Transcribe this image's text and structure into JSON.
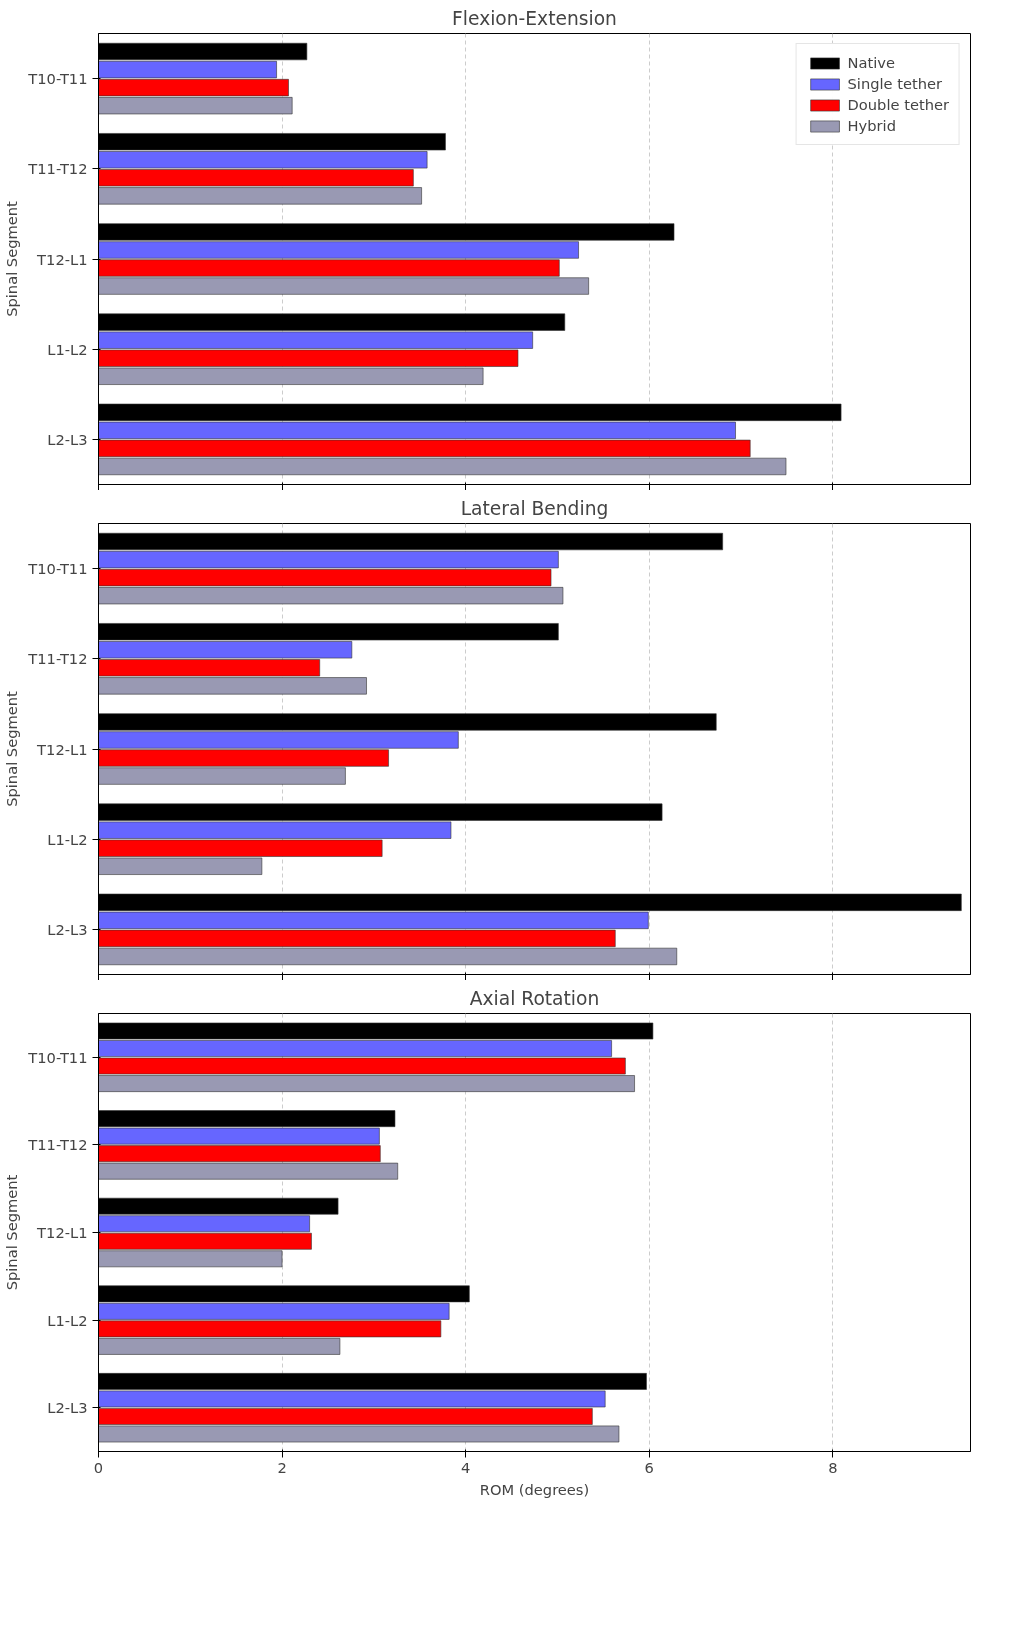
{
  "chart_data": [
    {
      "type": "bar",
      "orientation": "horizontal",
      "title": "Flexion-Extension",
      "ylabel": "Spinal Segment",
      "categories": [
        "T10-T11",
        "T11-T12",
        "T12-L1",
        "L1-L2",
        "L2-L3"
      ],
      "xlim": [
        0,
        9.5
      ],
      "xticks": [
        0,
        2,
        4,
        6,
        8
      ],
      "grid": "x",
      "legend": "top right",
      "tick_labels": "y",
      "series": [
        {
          "name": "Native",
          "color": "#000000",
          "values": [
            2.27,
            3.78,
            6.27,
            5.08,
            8.09
          ]
        },
        {
          "name": "Single tether",
          "color": "#6666ff",
          "values": [
            1.94,
            3.58,
            5.23,
            4.73,
            6.94
          ]
        },
        {
          "name": "Double tether",
          "color": "#ff0000",
          "values": [
            2.07,
            3.43,
            5.02,
            4.57,
            7.1
          ]
        },
        {
          "name": "Hybrid",
          "color": "#9999b3",
          "values": [
            2.11,
            3.52,
            5.34,
            4.19,
            7.49
          ]
        }
      ]
    },
    {
      "type": "bar",
      "orientation": "horizontal",
      "title": "Lateral Bending",
      "ylabel": "Spinal Segment",
      "categories": [
        "T10-T11",
        "T11-T12",
        "T12-L1",
        "L1-L2",
        "L2-L3"
      ],
      "xlim": [
        0,
        9.5
      ],
      "xticks": [
        0,
        2,
        4,
        6,
        8
      ],
      "grid": "x",
      "tick_labels": "y",
      "series": [
        {
          "color": "#000000",
          "values": [
            6.8,
            5.01,
            6.73,
            6.14,
            9.4
          ]
        },
        {
          "color": "#6666ff",
          "values": [
            5.01,
            2.76,
            3.92,
            3.84,
            5.99
          ]
        },
        {
          "color": "#ff0000",
          "values": [
            4.93,
            2.41,
            3.16,
            3.09,
            5.63
          ]
        },
        {
          "color": "#9999b3",
          "values": [
            5.06,
            2.92,
            2.69,
            1.78,
            6.3
          ]
        }
      ]
    },
    {
      "type": "bar",
      "orientation": "horizontal",
      "title": "Axial Rotation",
      "xlabel": "ROM (degrees)",
      "ylabel": "Spinal Segment",
      "categories": [
        "T10-T11",
        "T11-T12",
        "T12-L1",
        "L1-L2",
        "L2-L3"
      ],
      "xlim": [
        0,
        9.5
      ],
      "xticks": [
        0,
        2,
        4,
        6,
        8
      ],
      "grid": "x",
      "series": [
        {
          "color": "#000000",
          "values": [
            6.04,
            3.23,
            2.61,
            4.04,
            5.97
          ]
        },
        {
          "color": "#6666ff",
          "values": [
            5.59,
            3.06,
            2.3,
            3.82,
            5.52
          ]
        },
        {
          "color": "#ff0000",
          "values": [
            5.74,
            3.07,
            2.32,
            3.73,
            5.38
          ]
        },
        {
          "color": "#9999b3",
          "values": [
            5.84,
            3.26,
            2.0,
            2.63,
            5.67
          ]
        }
      ]
    }
  ]
}
